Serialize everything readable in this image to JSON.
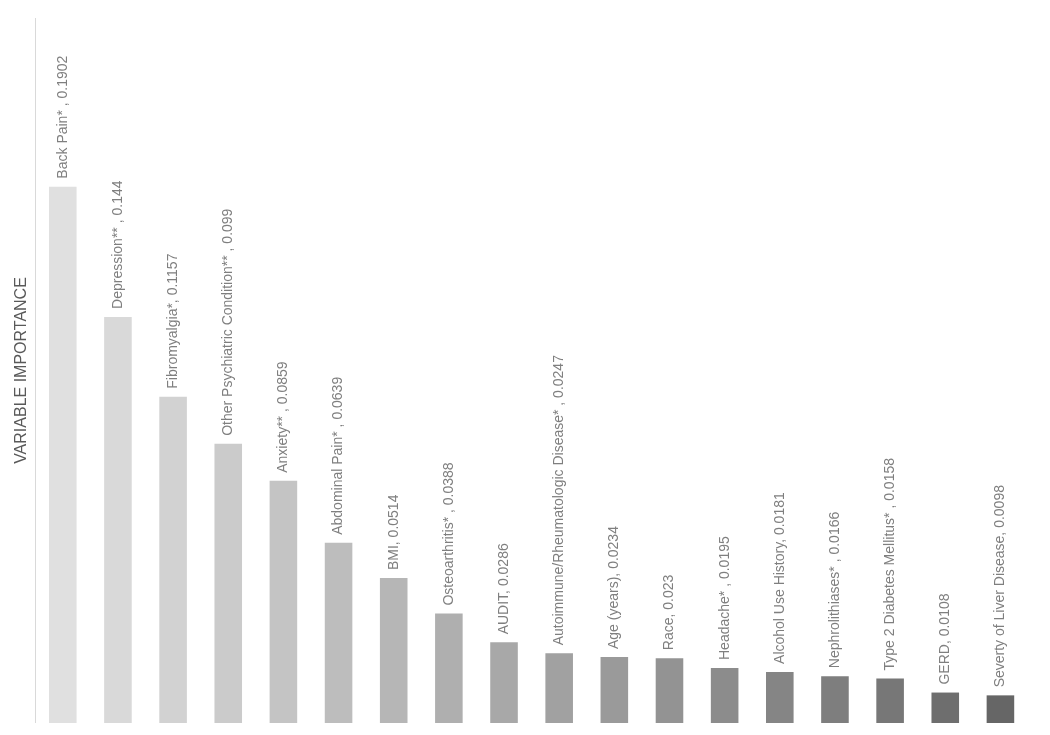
{
  "chart_data": {
    "type": "bar",
    "ylabel": "VARIABLE IMPORTANCE",
    "categories": [
      null,
      null,
      null,
      null,
      null,
      null,
      null,
      null,
      null,
      null,
      null,
      null,
      null,
      null,
      null,
      null,
      null,
      null
    ],
    "values": [
      0.1902,
      0.144,
      0.1157,
      0.099,
      0.0859,
      0.0639,
      0.0514,
      0.0388,
      0.0286,
      0.0247,
      0.0234,
      0.023,
      0.0195,
      0.0181,
      0.0166,
      0.0158,
      0.0108,
      0.0098
    ],
    "value_labels": [
      "Back Pain* , 0.1902",
      "Depression** , 0.144",
      "Fibromyalgia*, 0.1157",
      "Other Psychiatric Condition** , 0.099",
      "Anxiety** , 0.0859",
      "Abdominal Pain* , 0.0639",
      "BMI, 0.0514",
      "Osteoarthritis* , 0.0388",
      "AUDIT, 0.0286",
      "Autoimmune/Rheumatologic Disease* , 0.0247",
      "Age (years), 0.0234",
      "Race, 0.023",
      "Headache* , 0.0195",
      "Alcohol Use History, 0.0181",
      "Nephrolithiases* , 0.0166",
      "Type 2 Diabetes Mellitus* , 0.0158",
      "GERD, 0.0108",
      "Severty of Liver Disease, 0.0098"
    ],
    "colors": [
      "#e0e0e0",
      "#d9d9d9",
      "#d2d2d2",
      "#cbcbcb",
      "#c4c4c4",
      "#bdbdbd",
      "#b6b6b6",
      "#afafaf",
      "#a8a8a8",
      "#a1a1a1",
      "#9a9a9a",
      "#939393",
      "#8c8c8c",
      "#858585",
      "#7e7e7e",
      "#777777",
      "#6e6e6e",
      "#666666"
    ],
    "tick_labels": false,
    "grid": false,
    "legend": false
  }
}
